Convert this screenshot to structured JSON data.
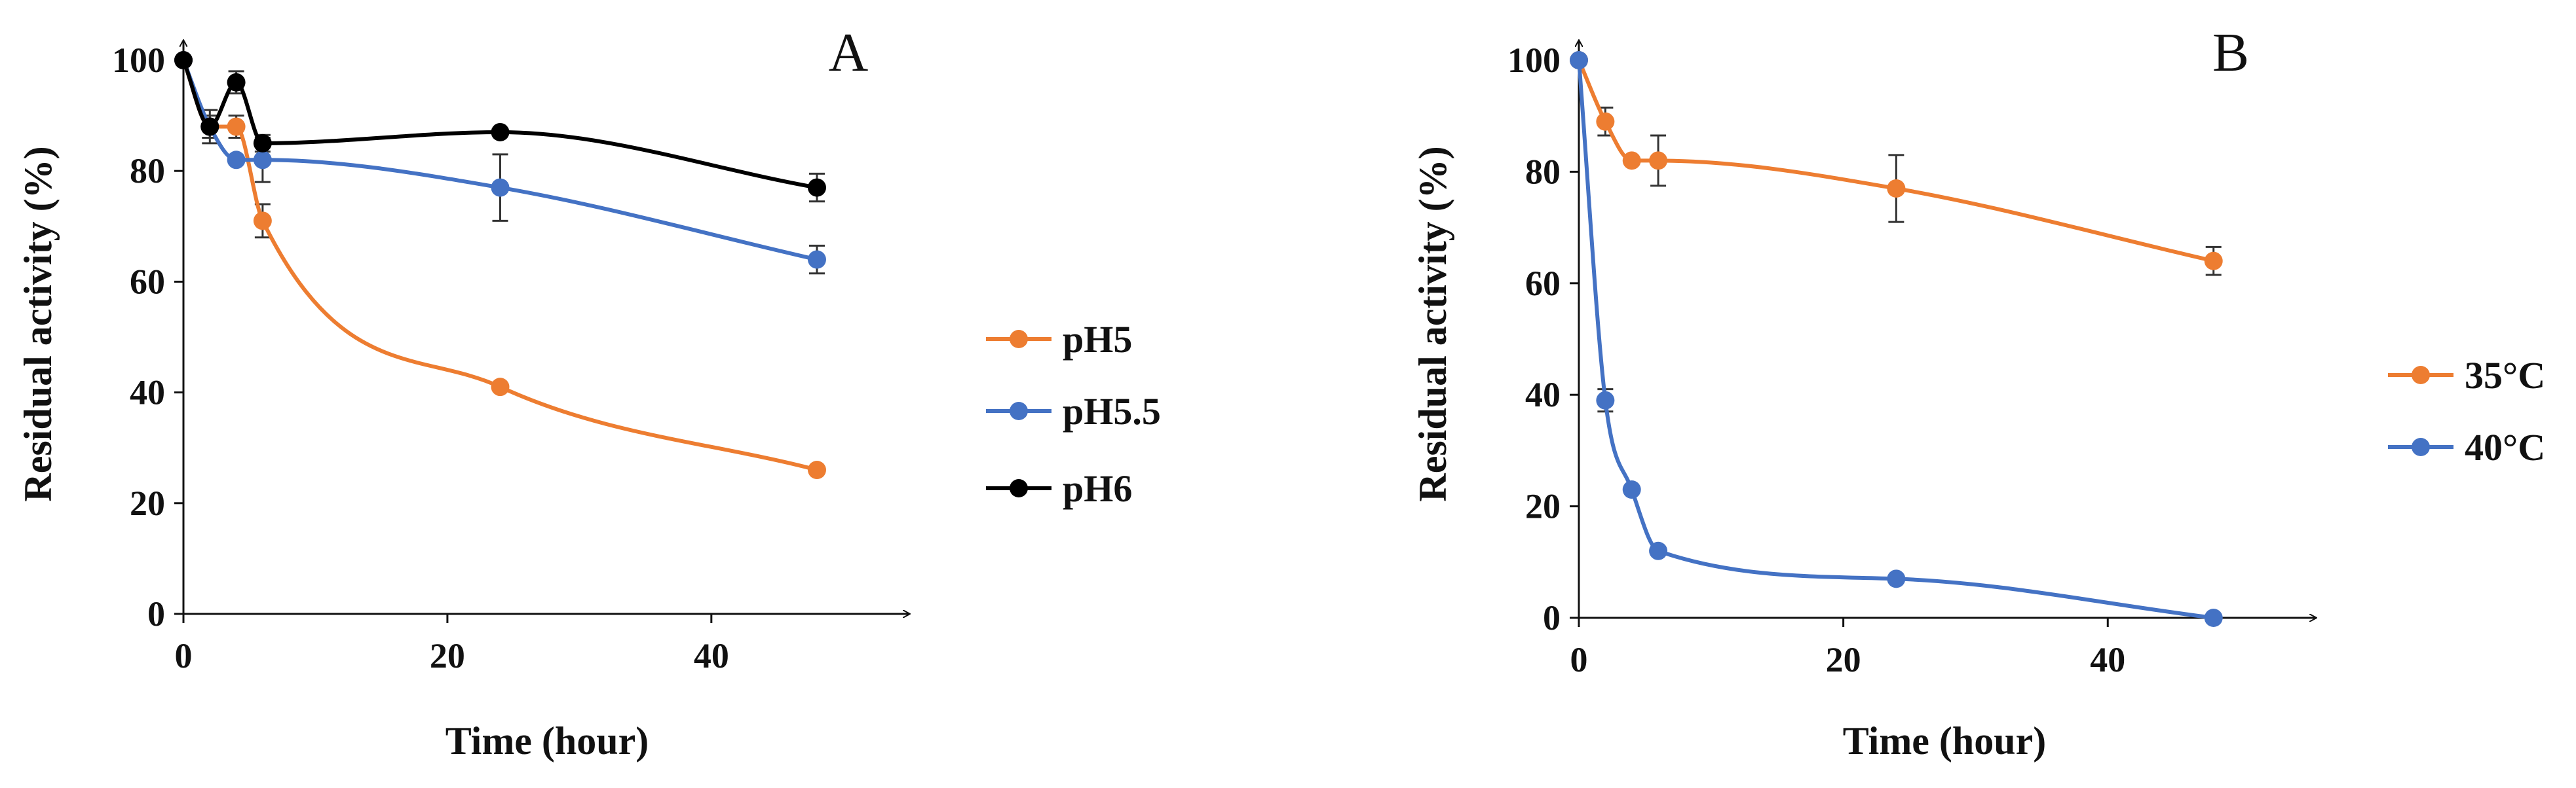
{
  "chart_data": [
    {
      "type": "line",
      "panel_label": "A",
      "xlabel": "Time (hour)",
      "ylabel": "Residual activity (%)",
      "xlim": [
        0,
        55
      ],
      "ylim": [
        0,
        100
      ],
      "xticks": [
        0,
        20,
        40
      ],
      "yticks": [
        0,
        20,
        40,
        60,
        80,
        100
      ],
      "x": [
        0,
        2,
        4,
        6,
        24,
        48
      ],
      "legend_position": "right",
      "series": [
        {
          "name": "pH5",
          "color": "#ED7D31",
          "values": [
            100,
            88,
            88,
            71,
            41,
            26
          ],
          "errors": [
            0,
            0,
            2,
            3,
            0,
            0
          ]
        },
        {
          "name": "pH5.5",
          "color": "#4472C4",
          "values": [
            100,
            88,
            82,
            82,
            77,
            64
          ],
          "errors": [
            0,
            3,
            0,
            4,
            6,
            2.5
          ]
        },
        {
          "name": "pH6",
          "color": "#000000",
          "values": [
            100,
            88,
            96,
            85,
            87,
            77
          ],
          "errors": [
            0,
            2,
            2,
            1.5,
            0,
            2.5
          ]
        }
      ]
    },
    {
      "type": "line",
      "panel_label": "B",
      "xlabel": "Time (hour)",
      "ylabel": "Residual activity (%)",
      "xlim": [
        0,
        55
      ],
      "ylim": [
        0,
        100
      ],
      "xticks": [
        0,
        20,
        40
      ],
      "yticks": [
        0,
        20,
        40,
        60,
        80,
        100
      ],
      "x": [
        0,
        2,
        4,
        6,
        24,
        48
      ],
      "legend_position": "right",
      "series": [
        {
          "name": "35°C",
          "color": "#ED7D31",
          "values": [
            100,
            89,
            82,
            82,
            77,
            64
          ],
          "errors": [
            0,
            2.5,
            0,
            4.5,
            6,
            2.5
          ]
        },
        {
          "name": "40°C",
          "color": "#4472C4",
          "values": [
            100,
            39,
            23,
            12,
            7,
            0
          ],
          "errors": [
            0,
            2,
            0,
            0,
            0,
            0
          ]
        }
      ]
    }
  ]
}
